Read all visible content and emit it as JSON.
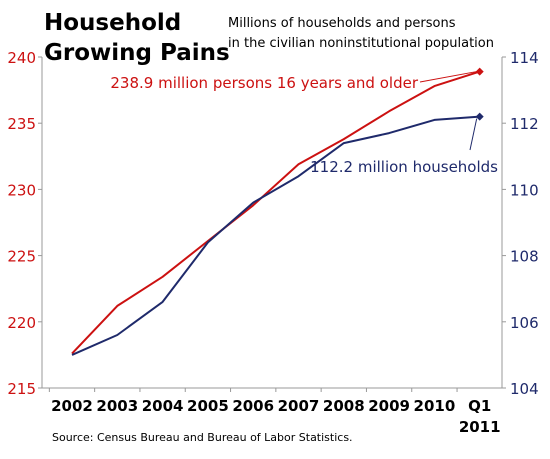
{
  "header": {
    "title_line1": "Household",
    "title_line2": "Growing Pains",
    "subtitle_line1": "Millions of households and  persons",
    "subtitle_line2": "in the civilian noninstitutional population"
  },
  "source": "Source:  Census Bureau and Bureau of Labor Statistics.",
  "colors": {
    "persons": "#cc1111",
    "households": "#1f2a6b"
  },
  "chart_data": {
    "type": "line",
    "categories": [
      [
        "2002"
      ],
      [
        "2003"
      ],
      [
        "2004"
      ],
      [
        "2005"
      ],
      [
        "2006"
      ],
      [
        "2007"
      ],
      [
        "2008"
      ],
      [
        "2009"
      ],
      [
        "2010"
      ],
      [
        "Q1",
        "2011"
      ]
    ],
    "series": [
      {
        "key": "persons",
        "axis": "left",
        "values": [
          217.6,
          221.2,
          223.4,
          226.1,
          228.8,
          231.9,
          233.8,
          235.9,
          237.8,
          238.9
        ],
        "annotation": "238.9 million persons 16 years and older"
      },
      {
        "key": "households",
        "axis": "right",
        "values": [
          105.0,
          105.6,
          106.6,
          108.4,
          109.6,
          110.4,
          111.4,
          111.7,
          112.1,
          112.2
        ],
        "annotation": "112.2 million households"
      }
    ],
    "y_left": {
      "lim": [
        215,
        240
      ],
      "ticks": [
        215,
        220,
        225,
        230,
        235,
        240
      ]
    },
    "y_right": {
      "lim": [
        104,
        114
      ],
      "ticks": [
        104,
        106,
        108,
        110,
        112,
        114
      ]
    }
  }
}
